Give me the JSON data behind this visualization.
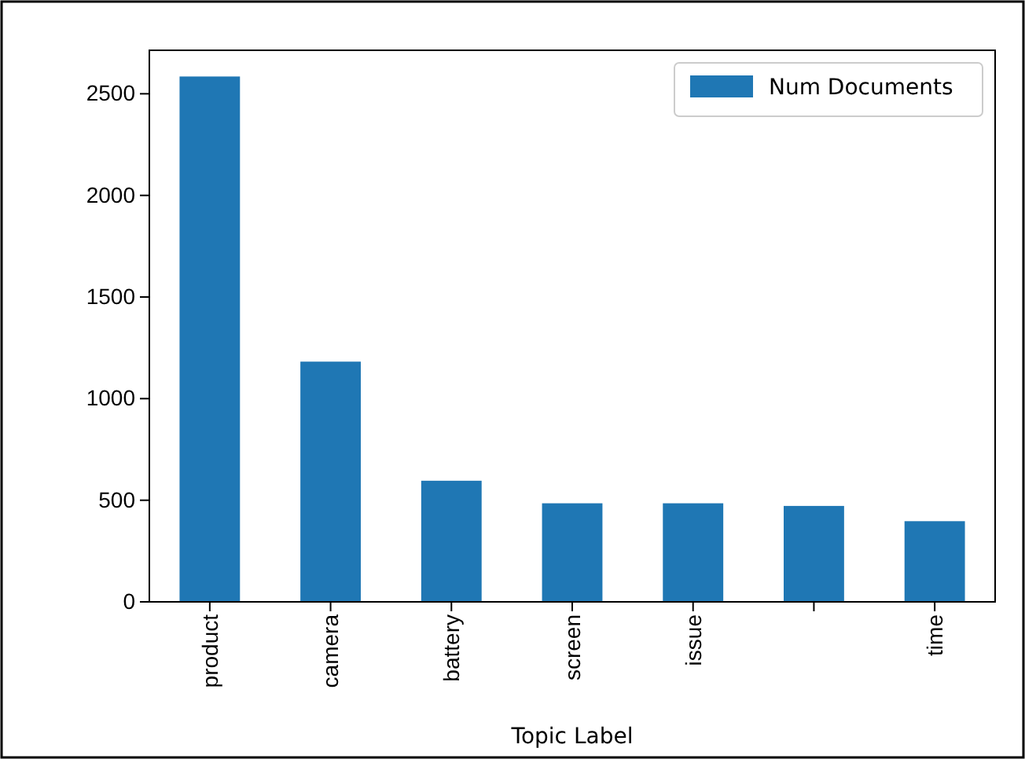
{
  "chart_data": {
    "type": "bar",
    "xlabel": "Topic Label",
    "categories": [
      "product",
      "camera",
      "battery",
      "screen",
      "issue",
      null,
      "time"
    ],
    "series": [
      {
        "name": "Num Documents",
        "color": "#1f77b4",
        "values": [
          2585,
          1182,
          596,
          485,
          485,
          472,
          397
        ]
      }
    ],
    "ylim": [
      0,
      2714
    ],
    "yticks": [
      0,
      500,
      1000,
      1500,
      2000,
      2500
    ],
    "legend": "top right",
    "grid": false
  }
}
